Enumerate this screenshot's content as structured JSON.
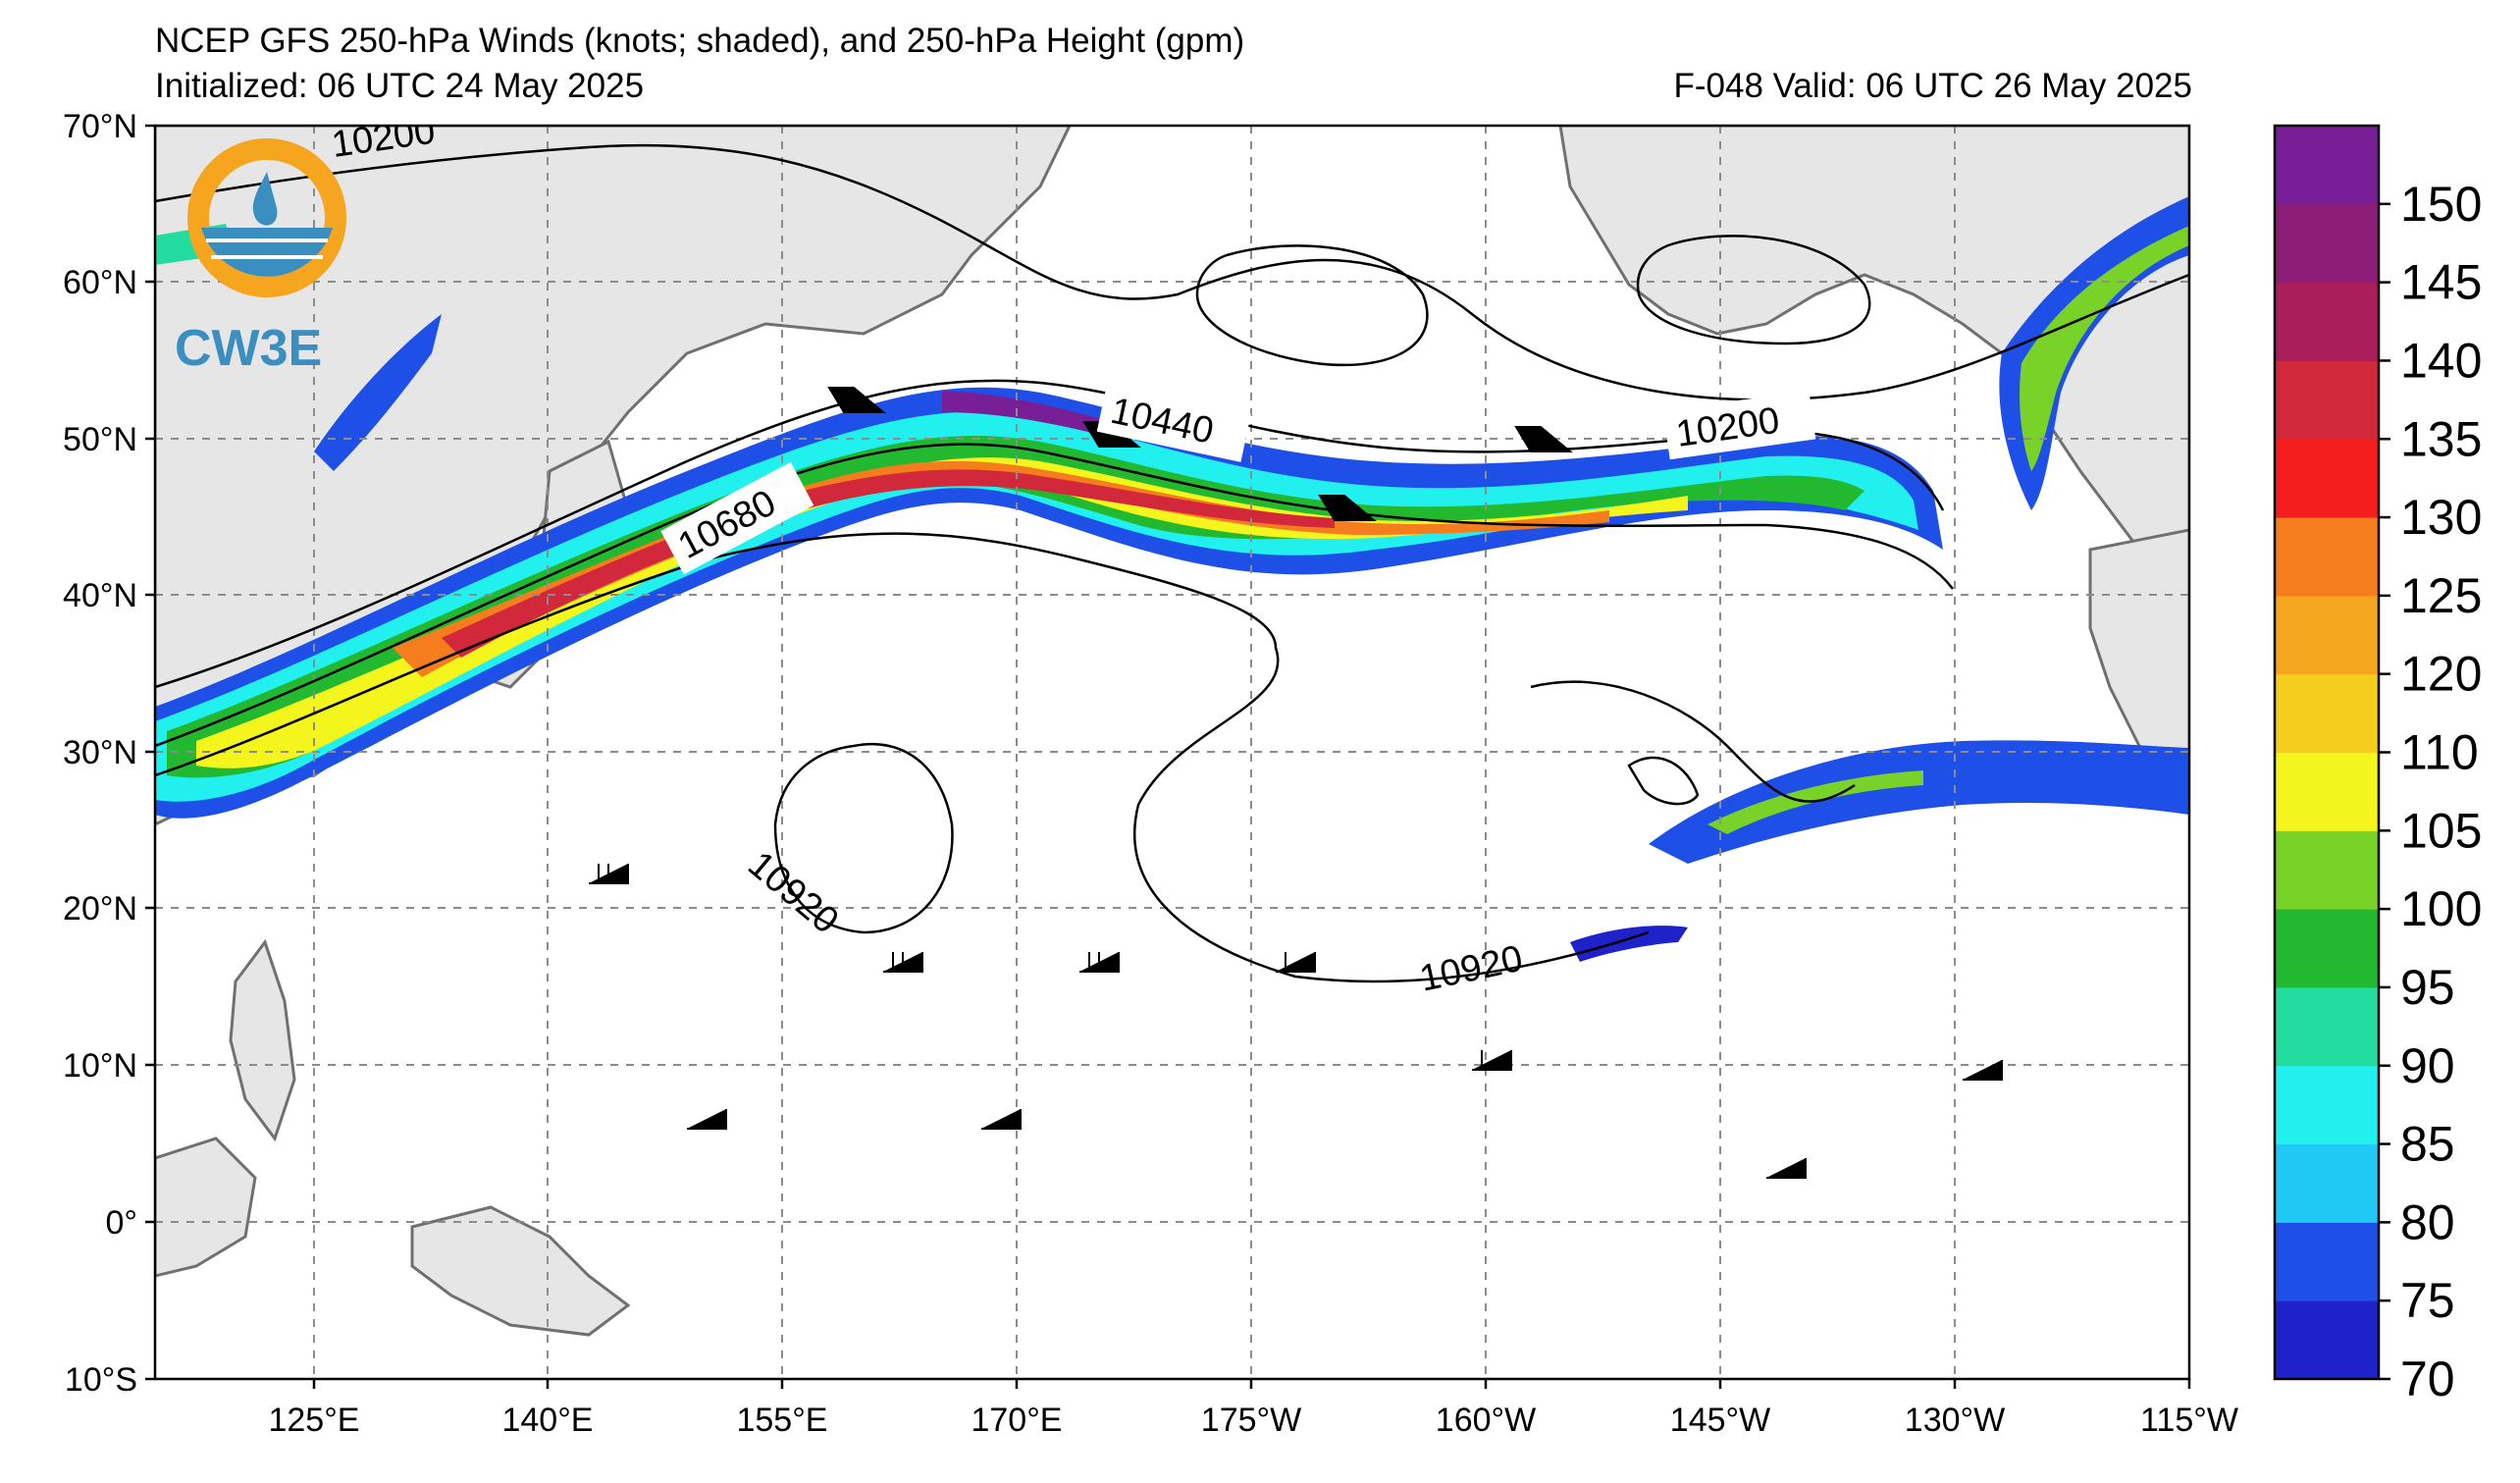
{
  "header": {
    "title": "NCEP GFS 250-hPa Winds (knots; shaded), and 250-hPa Height (gpm)",
    "initialized": "Initialized: 06 UTC 24 May 2025",
    "valid": "F-048  Valid: 06 UTC 26 May 2025"
  },
  "logo": {
    "text": "CW3E"
  },
  "lat_labels": [
    "70°N",
    "60°N",
    "50°N",
    "40°N",
    "30°N",
    "20°N",
    "10°N",
    "0°",
    "10°S"
  ],
  "lon_labels": [
    "125°E",
    "140°E",
    "155°E",
    "170°E",
    "175°W",
    "160°W",
    "145°W",
    "130°W",
    "115°W"
  ],
  "colorbar": {
    "labels": [
      "70",
      "75",
      "80",
      "85",
      "90",
      "95",
      "100",
      "105",
      "110",
      "120",
      "125",
      "130",
      "135",
      "140",
      "145",
      "150"
    ],
    "colors": [
      "#1e22c8",
      "#1e50e8",
      "#20c8f5",
      "#22f0ee",
      "#22dca0",
      "#22b830",
      "#78d228",
      "#f5f51e",
      "#f5cd1e",
      "#f5a51e",
      "#f57d1e",
      "#f51e1e",
      "#d2283c",
      "#aa1e5a",
      "#8c1e78",
      "#781e96"
    ]
  },
  "contour_labels": [
    "10200",
    "10440",
    "10680",
    "10200",
    "10920",
    "10920"
  ],
  "colors": {
    "land": "#e6e6e6",
    "coast": "#707070",
    "grid": "#8c8c8c",
    "contour": "#000000"
  }
}
